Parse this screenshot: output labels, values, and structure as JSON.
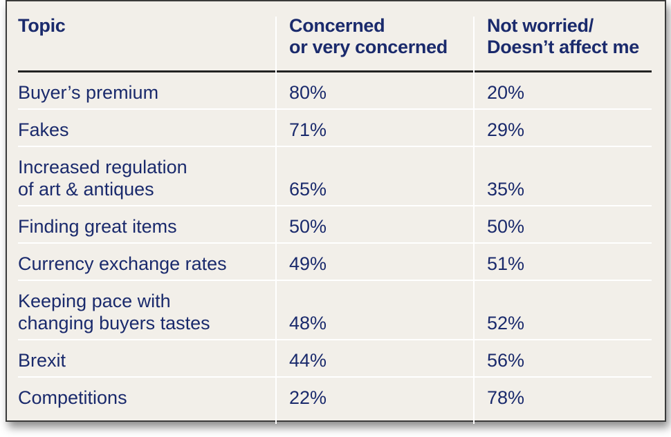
{
  "chart_data": {
    "type": "table",
    "columns": [
      "Topic",
      "Concerned\nor very concerned",
      "Not worried/\nDoesn’t affect me"
    ],
    "rows": [
      {
        "topic": "Buyer’s premium",
        "concerned": "80%",
        "not_worried": "20%"
      },
      {
        "topic": "Fakes",
        "concerned": "71%",
        "not_worried": "29%"
      },
      {
        "topic": "Increased regulation\nof art & antiques",
        "concerned": "65%",
        "not_worried": "35%"
      },
      {
        "topic": "Finding great items",
        "concerned": "50%",
        "not_worried": "50%"
      },
      {
        "topic": "Currency exchange rates",
        "concerned": "49%",
        "not_worried": "51%"
      },
      {
        "topic": "Keeping pace with\nchanging buyers tastes",
        "concerned": "48%",
        "not_worried": "52%"
      },
      {
        "topic": "Brexit",
        "concerned": "44%",
        "not_worried": "56%"
      },
      {
        "topic": "Competitions",
        "concerned": "22%",
        "not_worried": "78%"
      }
    ]
  },
  "header": {
    "topic": "Topic",
    "concerned_line1": "Concerned",
    "concerned_line2": "or very concerned",
    "not_worried_line1": "Not worried/",
    "not_worried_line2": "Doesn’t affect me"
  },
  "colors": {
    "text": "#1a2a6c",
    "background": "#f2efe9",
    "rule": "#222222",
    "separator": "#ffffff"
  }
}
